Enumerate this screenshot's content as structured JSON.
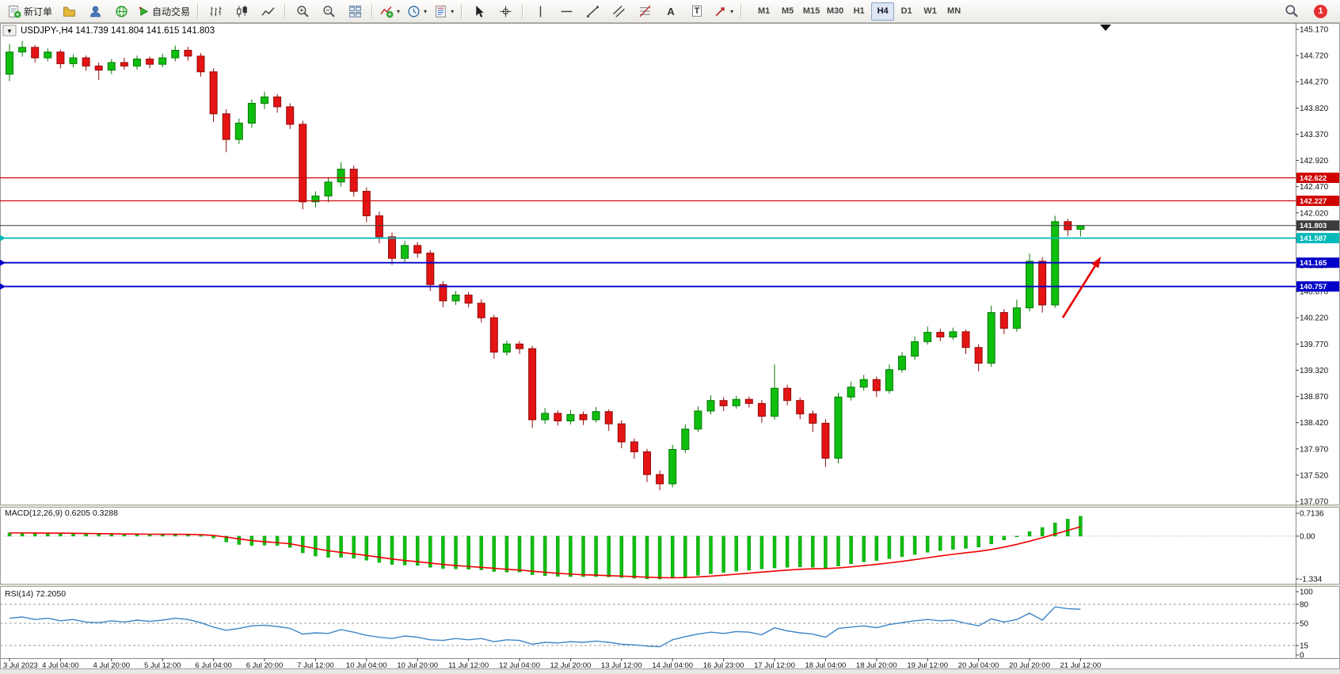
{
  "toolbar": {
    "new_order": "新订单",
    "auto_trading": "自动交易",
    "text_tool": "A",
    "label_tool": "T",
    "timeframes": [
      "M1",
      "M5",
      "M15",
      "M30",
      "H1",
      "H4",
      "D1",
      "W1",
      "MN"
    ],
    "active_timeframe": "H4",
    "notification_count": "1"
  },
  "icons": {
    "caret": "▾",
    "chart_menu_arrow": "▼"
  },
  "chart": {
    "title": "USDJPY-,H4 141.739 141.804 141.615 141.803",
    "symbol": "USDJPY-",
    "period": "H4",
    "open": "141.739",
    "high": "141.804",
    "low": "141.615",
    "close": "141.803"
  },
  "colors": {
    "bull": "#0fbf0f",
    "bull_edge": "#077a07",
    "bear": "#e41414",
    "bear_edge": "#930b0b",
    "macd_histogram": "#0fbf0f",
    "macd_signal": "#f00000",
    "rsi_line": "#3d85c8",
    "level_red": "#d00000",
    "level_cyan": "#00b8b8",
    "level_blue": "#0000c8",
    "current_price": "#3c3c3c",
    "arrow": "#e60000"
  },
  "levels": [
    {
      "label": "142.622",
      "price": 142.622,
      "color": "#d00000",
      "width": 1.2,
      "kind": "resistance-line",
      "marker": false
    },
    {
      "label": "142.227",
      "price": 142.227,
      "color": "#d00000",
      "width": 1.2,
      "kind": "resistance-line",
      "marker": false
    },
    {
      "label": "141.803",
      "price": 141.803,
      "color": "#3c3c3c",
      "width": 1.0,
      "kind": "current-price-line",
      "marker": false
    },
    {
      "label": "141.587",
      "price": 141.587,
      "color": "#00b8b8",
      "width": 1.8,
      "kind": "support-line",
      "marker": true
    },
    {
      "label": "141.165",
      "price": 141.165,
      "color": "#0000c8",
      "width": 1.8,
      "kind": "support-line",
      "marker": true
    },
    {
      "label": "140.757",
      "price": 140.757,
      "color": "#0000c8",
      "width": 1.8,
      "kind": "support-line",
      "marker": true
    }
  ],
  "annotations": {
    "trend_arrow": {
      "color": "#e60000",
      "from_bar": 82.6,
      "from_price": 140.22,
      "to_bar": 85.6,
      "to_price": 141.27
    }
  },
  "chart_data": {
    "type": "candlestick+indicators",
    "symbol": "USDJPY",
    "period": "H4",
    "price_range": [
      137.07,
      145.17
    ],
    "price_axis_ticks": [
      "145.170",
      "144.720",
      "144.270",
      "143.820",
      "143.370",
      "142.920",
      "142.470",
      "142.020",
      "141.570",
      "141.120",
      "140.670",
      "140.220",
      "139.770",
      "139.320",
      "138.870",
      "138.420",
      "137.970",
      "137.520",
      "137.070"
    ],
    "time_labels": [
      "3 Jul 2023",
      "4 Jul 04:00",
      "4 Jul 20:00",
      "5 Jul 12:00",
      "6 Jul 04:00",
      "6 Jul 20:00",
      "7 Jul 12:00",
      "10 Jul 04:00",
      "10 Jul 20:00",
      "11 Jul 12:00",
      "12 Jul 04:00",
      "12 Jul 20:00",
      "13 Jul 12:00",
      "14 Jul 04:00",
      "16 Jul 23:00",
      "17 Jul 12:00",
      "18 Jul 04:00",
      "18 Jul 20:00",
      "19 Jul 12:00",
      "20 Jul 04:00",
      "20 Jul 20:00",
      "21 Jul 12:00"
    ],
    "candles_ohlc": [
      [
        144.4,
        144.92,
        144.28,
        144.78
      ],
      [
        144.78,
        144.97,
        144.7,
        144.86
      ],
      [
        144.86,
        144.9,
        144.6,
        144.68
      ],
      [
        144.68,
        144.84,
        144.62,
        144.78
      ],
      [
        144.78,
        144.82,
        144.5,
        144.58
      ],
      [
        144.58,
        144.74,
        144.52,
        144.68
      ],
      [
        144.68,
        144.72,
        144.46,
        144.54
      ],
      [
        144.54,
        144.6,
        144.3,
        144.47
      ],
      [
        144.47,
        144.66,
        144.4,
        144.6
      ],
      [
        144.6,
        144.68,
        144.48,
        144.54
      ],
      [
        144.54,
        144.72,
        144.48,
        144.66
      ],
      [
        144.66,
        144.7,
        144.5,
        144.57
      ],
      [
        144.57,
        144.75,
        144.52,
        144.68
      ],
      [
        144.68,
        144.89,
        144.62,
        144.81
      ],
      [
        144.81,
        144.87,
        144.63,
        144.71
      ],
      [
        144.71,
        144.76,
        144.36,
        144.44
      ],
      [
        144.44,
        144.5,
        143.58,
        143.72
      ],
      [
        143.72,
        143.8,
        143.06,
        143.28
      ],
      [
        143.28,
        143.64,
        143.2,
        143.56
      ],
      [
        143.56,
        143.97,
        143.48,
        143.9
      ],
      [
        143.9,
        144.1,
        143.8,
        144.01
      ],
      [
        144.01,
        144.06,
        143.74,
        143.84
      ],
      [
        143.84,
        143.9,
        143.46,
        143.54
      ],
      [
        143.54,
        143.6,
        142.08,
        142.21
      ],
      [
        142.21,
        142.39,
        142.11,
        142.31
      ],
      [
        142.31,
        142.63,
        142.2,
        142.55
      ],
      [
        142.55,
        142.89,
        142.47,
        142.77
      ],
      [
        142.77,
        142.83,
        142.3,
        142.39
      ],
      [
        142.39,
        142.46,
        141.86,
        141.97
      ],
      [
        141.97,
        142.04,
        141.5,
        141.61
      ],
      [
        141.61,
        141.68,
        141.13,
        141.24
      ],
      [
        141.24,
        141.54,
        141.18,
        141.46
      ],
      [
        141.46,
        141.52,
        141.25,
        141.33
      ],
      [
        141.33,
        141.38,
        140.68,
        140.79
      ],
      [
        140.79,
        140.85,
        140.4,
        140.51
      ],
      [
        140.51,
        140.68,
        140.44,
        140.61
      ],
      [
        140.61,
        140.66,
        140.4,
        140.47
      ],
      [
        140.47,
        140.54,
        140.14,
        140.22
      ],
      [
        140.22,
        140.27,
        139.52,
        139.63
      ],
      [
        139.63,
        139.83,
        139.57,
        139.77
      ],
      [
        139.77,
        139.82,
        139.6,
        139.69
      ],
      [
        139.69,
        139.74,
        138.33,
        138.47
      ],
      [
        138.47,
        138.67,
        138.4,
        138.58
      ],
      [
        138.58,
        138.63,
        138.37,
        138.45
      ],
      [
        138.45,
        138.64,
        138.39,
        138.56
      ],
      [
        138.56,
        138.61,
        138.38,
        138.47
      ],
      [
        138.47,
        138.69,
        138.42,
        138.61
      ],
      [
        138.61,
        138.65,
        138.28,
        138.4
      ],
      [
        138.4,
        138.46,
        137.98,
        138.09
      ],
      [
        138.09,
        138.15,
        137.8,
        137.92
      ],
      [
        137.92,
        137.97,
        137.4,
        137.53
      ],
      [
        137.53,
        137.6,
        137.26,
        137.37
      ],
      [
        137.37,
        138.04,
        137.31,
        137.96
      ],
      [
        137.96,
        138.39,
        137.9,
        138.31
      ],
      [
        138.31,
        138.7,
        138.26,
        138.62
      ],
      [
        138.62,
        138.89,
        138.56,
        138.8
      ],
      [
        138.8,
        138.86,
        138.62,
        138.71
      ],
      [
        138.71,
        138.88,
        138.66,
        138.82
      ],
      [
        138.82,
        138.87,
        138.68,
        138.75
      ],
      [
        138.75,
        138.81,
        138.42,
        138.53
      ],
      [
        138.53,
        139.42,
        138.47,
        139.01
      ],
      [
        139.01,
        139.07,
        138.72,
        138.8
      ],
      [
        138.8,
        138.85,
        138.48,
        138.57
      ],
      [
        138.57,
        138.63,
        138.26,
        138.41
      ],
      [
        138.41,
        138.48,
        137.66,
        137.81
      ],
      [
        137.81,
        138.93,
        137.72,
        138.86
      ],
      [
        138.86,
        139.12,
        138.8,
        139.03
      ],
      [
        139.03,
        139.24,
        138.97,
        139.16
      ],
      [
        139.16,
        139.21,
        138.86,
        138.97
      ],
      [
        138.97,
        139.42,
        138.92,
        139.33
      ],
      [
        139.33,
        139.63,
        139.28,
        139.56
      ],
      [
        139.56,
        139.9,
        139.5,
        139.81
      ],
      [
        139.81,
        140.07,
        139.76,
        139.97
      ],
      [
        139.97,
        140.03,
        139.82,
        139.89
      ],
      [
        139.89,
        140.05,
        139.84,
        139.98
      ],
      [
        139.98,
        140.02,
        139.6,
        139.71
      ],
      [
        139.71,
        139.77,
        139.3,
        139.44
      ],
      [
        139.44,
        140.43,
        139.38,
        140.31
      ],
      [
        140.31,
        140.37,
        139.94,
        140.04
      ],
      [
        140.04,
        140.53,
        139.98,
        140.39
      ],
      [
        140.39,
        141.32,
        140.33,
        141.19
      ],
      [
        141.19,
        141.26,
        140.31,
        140.44
      ],
      [
        140.44,
        141.97,
        140.39,
        141.87
      ],
      [
        141.87,
        141.92,
        141.62,
        141.73
      ],
      [
        141.739,
        141.804,
        141.615,
        141.803
      ]
    ],
    "macd": {
      "display": "MACD(12,26,9) 0.6205 0.3288",
      "label": "MACD(12,26,9)",
      "main_value": "0.6205",
      "signal_value": "0.3288",
      "axis_ticks": [
        "0.7136",
        "0.00",
        "-1.334"
      ],
      "range": [
        -1.334,
        0.7136
      ],
      "histogram": [
        0.1,
        0.1,
        0.09,
        0.09,
        0.08,
        0.08,
        0.07,
        0.06,
        0.06,
        0.05,
        0.05,
        0.05,
        0.05,
        0.06,
        0.05,
        0.02,
        -0.06,
        -0.18,
        -0.26,
        -0.29,
        -0.28,
        -0.29,
        -0.35,
        -0.52,
        -0.62,
        -0.66,
        -0.66,
        -0.69,
        -0.75,
        -0.82,
        -0.88,
        -0.9,
        -0.91,
        -0.97,
        -1.01,
        -1.02,
        -1.03,
        -1.05,
        -1.1,
        -1.12,
        -1.12,
        -1.2,
        -1.23,
        -1.25,
        -1.26,
        -1.26,
        -1.26,
        -1.27,
        -1.29,
        -1.31,
        -1.33,
        -1.334,
        -1.31,
        -1.27,
        -1.22,
        -1.17,
        -1.13,
        -1.09,
        -1.06,
        -1.02,
        -0.99,
        -0.97,
        -0.96,
        -0.97,
        -0.99,
        -0.93,
        -0.86,
        -0.8,
        -0.76,
        -0.7,
        -0.64,
        -0.57,
        -0.5,
        -0.45,
        -0.41,
        -0.38,
        -0.34,
        -0.24,
        -0.12,
        0.0,
        0.14,
        0.27,
        0.41,
        0.53,
        0.6205
      ]
    },
    "rsi": {
      "display": "RSI(14) 72.2050",
      "label": "RSI(14)",
      "value": "72.2050",
      "axis_ticks": [
        "100",
        "80",
        "50",
        "15",
        "0"
      ],
      "levels": [
        80,
        50,
        15
      ],
      "range": [
        0,
        100
      ],
      "values": [
        58,
        60,
        56,
        58,
        54,
        56,
        52,
        51,
        54,
        52,
        55,
        53,
        55,
        58,
        56,
        51,
        44,
        39,
        42,
        46,
        47,
        45,
        42,
        33,
        35,
        34,
        40,
        36,
        31,
        28,
        26,
        30,
        28,
        24,
        23,
        26,
        24,
        26,
        21,
        24,
        23,
        17,
        20,
        19,
        21,
        20,
        22,
        20,
        17,
        16,
        14,
        13,
        24,
        29,
        33,
        36,
        34,
        37,
        36,
        32,
        43,
        38,
        35,
        33,
        28,
        42,
        44,
        46,
        43,
        48,
        51,
        54,
        56,
        54,
        55,
        50,
        46,
        57,
        52,
        56,
        66,
        55,
        76,
        73,
        72.2
      ]
    }
  }
}
